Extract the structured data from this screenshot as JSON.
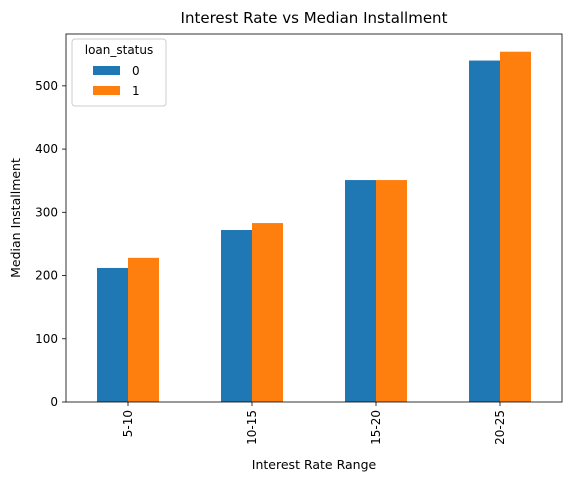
{
  "chart_data": {
    "type": "bar",
    "title": "Interest Rate vs Median Installment",
    "xlabel": "Interest Rate Range",
    "ylabel": "Median Installment",
    "categories": [
      "5-10",
      "10-15",
      "15-20",
      "20-25"
    ],
    "series": [
      {
        "name": "0",
        "color": "#1f77b4",
        "values": [
          212,
          272,
          351,
          540
        ]
      },
      {
        "name": "1",
        "color": "#ff7f0e",
        "values": [
          228,
          283,
          351,
          554
        ]
      }
    ],
    "ylim": [
      0,
      582
    ],
    "yticks": [
      0,
      100,
      200,
      300,
      400,
      500
    ],
    "legend": {
      "title": "loan_status",
      "position": "top-left"
    },
    "grid": false
  }
}
